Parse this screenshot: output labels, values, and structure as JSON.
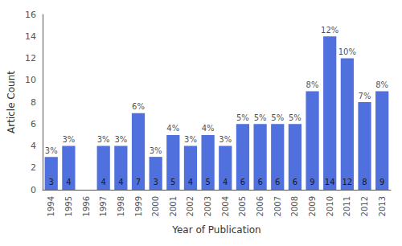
{
  "chart_data": {
    "type": "bar",
    "xlabel": "Year of Publication",
    "ylabel": "Article Count",
    "categories": [
      "1994",
      "1995",
      "1996",
      "1997",
      "1998",
      "1999",
      "2000",
      "2001",
      "2002",
      "2003",
      "2004",
      "2005",
      "2006",
      "2007",
      "2008",
      "2009",
      "2010",
      "2011",
      "2012",
      "2013"
    ],
    "values": [
      3,
      4,
      0,
      4,
      4,
      7,
      3,
      5,
      4,
      5,
      4,
      6,
      6,
      6,
      6,
      9,
      14,
      12,
      8,
      9
    ],
    "annotations": [
      "3%",
      "3%",
      null,
      "3%",
      "3%",
      "6%",
      "3%",
      "4%",
      "3%",
      "4%",
      "3%",
      "5%",
      "5%",
      "5%",
      "5%",
      "8%",
      "12%",
      "10%",
      "7%",
      "8%"
    ],
    "data_labels": true,
    "ylim": [
      0,
      16
    ],
    "yticks": [
      0,
      2,
      4,
      6,
      8,
      10,
      12,
      14,
      16
    ],
    "grid": false
  }
}
